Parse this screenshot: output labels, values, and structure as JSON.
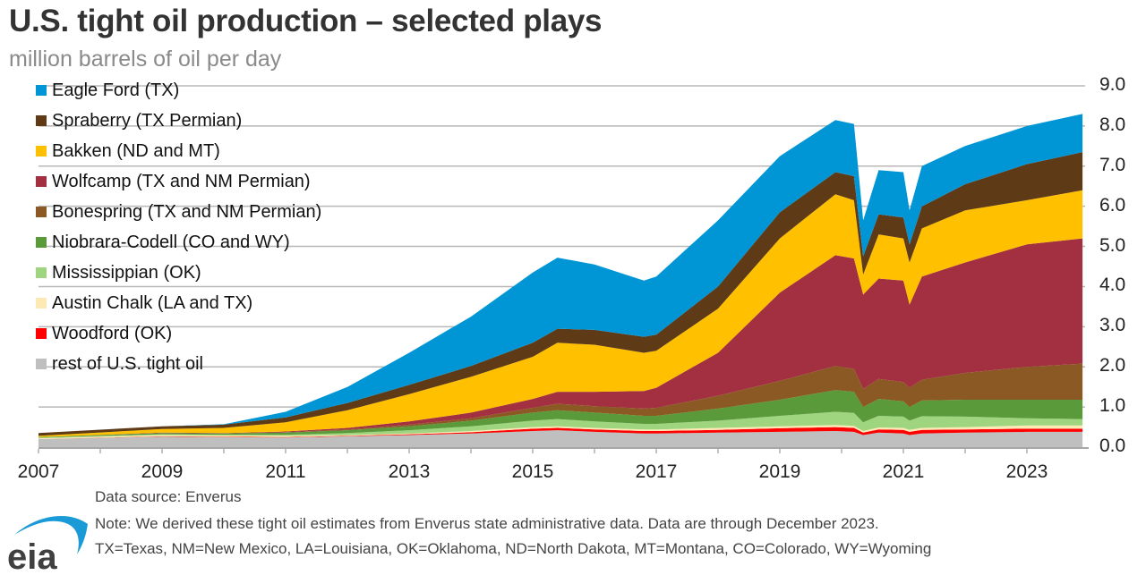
{
  "chart_data": {
    "type": "area",
    "stacked": true,
    "title": "U.S. tight oil production – selected plays",
    "subtitle": "million barrels of oil per day",
    "xlabel": "",
    "ylabel": "million barrels of oil per day",
    "ylim": [
      0,
      9
    ],
    "xlim": [
      2007,
      2024
    ],
    "y_ticks": [
      "0.0",
      "1.0",
      "2.0",
      "3.0",
      "4.0",
      "5.0",
      "6.0",
      "7.0",
      "8.0",
      "9.0"
    ],
    "x_ticks": [
      "2007",
      "2009",
      "2011",
      "2013",
      "2015",
      "2017",
      "2019",
      "2021",
      "2023"
    ],
    "grid": true,
    "legend_position": "top-left",
    "y_axis_side": "right",
    "x": [
      2007.0,
      2009.0,
      2010.0,
      2011.0,
      2012.0,
      2013.0,
      2014.0,
      2015.0,
      2015.4,
      2016.0,
      2016.8,
      2017.0,
      2018.0,
      2019.0,
      2019.9,
      2020.2,
      2020.35,
      2020.6,
      2021.0,
      2021.1,
      2021.3,
      2022.0,
      2023.0,
      2023.9
    ],
    "series": [
      {
        "name": "rest of U.S. tight oil",
        "color": "#bfbfbf",
        "values": [
          0.2,
          0.26,
          0.25,
          0.24,
          0.27,
          0.3,
          0.34,
          0.4,
          0.42,
          0.38,
          0.34,
          0.34,
          0.36,
          0.38,
          0.4,
          0.38,
          0.3,
          0.36,
          0.34,
          0.3,
          0.34,
          0.36,
          0.38,
          0.38
        ]
      },
      {
        "name": "Woodford (OK)",
        "color": "#ff0000",
        "values": [
          0.0,
          0.01,
          0.01,
          0.01,
          0.01,
          0.02,
          0.03,
          0.06,
          0.06,
          0.06,
          0.06,
          0.06,
          0.07,
          0.09,
          0.1,
          0.1,
          0.06,
          0.08,
          0.09,
          0.08,
          0.09,
          0.08,
          0.08,
          0.08
        ]
      },
      {
        "name": "Austin Chalk (LA and TX)",
        "color": "#fde9b4",
        "values": [
          0.02,
          0.03,
          0.03,
          0.03,
          0.02,
          0.02,
          0.03,
          0.04,
          0.04,
          0.04,
          0.04,
          0.04,
          0.05,
          0.05,
          0.05,
          0.05,
          0.04,
          0.05,
          0.05,
          0.05,
          0.05,
          0.06,
          0.08,
          0.08
        ]
      },
      {
        "name": "Mississippian (OK)",
        "color": "#9fd57f",
        "values": [
          0.02,
          0.02,
          0.02,
          0.03,
          0.05,
          0.08,
          0.12,
          0.16,
          0.18,
          0.16,
          0.14,
          0.14,
          0.18,
          0.26,
          0.33,
          0.32,
          0.22,
          0.29,
          0.28,
          0.23,
          0.29,
          0.26,
          0.18,
          0.16
        ]
      },
      {
        "name": "Niobrara-Codell (CO and WY)",
        "color": "#5a9a3a",
        "values": [
          0.01,
          0.03,
          0.03,
          0.05,
          0.07,
          0.1,
          0.14,
          0.2,
          0.22,
          0.22,
          0.2,
          0.2,
          0.3,
          0.4,
          0.54,
          0.53,
          0.38,
          0.42,
          0.38,
          0.34,
          0.39,
          0.42,
          0.46,
          0.48
        ]
      },
      {
        "name": "Bonespring (TX and NM Permian)",
        "color": "#8b5a24",
        "values": [
          0.0,
          0.0,
          0.0,
          0.01,
          0.02,
          0.04,
          0.06,
          0.12,
          0.16,
          0.16,
          0.18,
          0.2,
          0.32,
          0.47,
          0.6,
          0.57,
          0.45,
          0.5,
          0.48,
          0.48,
          0.52,
          0.67,
          0.82,
          0.9
        ]
      },
      {
        "name": "Wolfcamp (TX and NM Permian)",
        "color": "#a33040",
        "values": [
          0.0,
          0.01,
          0.01,
          0.02,
          0.04,
          0.08,
          0.14,
          0.22,
          0.3,
          0.36,
          0.44,
          0.5,
          1.07,
          2.2,
          2.76,
          2.75,
          2.35,
          2.5,
          2.53,
          2.07,
          2.57,
          2.75,
          3.05,
          3.12
        ]
      },
      {
        "name": "Bakken (ND and MT)",
        "color": "#ffc000",
        "values": [
          0.03,
          0.09,
          0.13,
          0.23,
          0.44,
          0.68,
          0.89,
          1.05,
          1.22,
          1.17,
          0.95,
          0.92,
          1.1,
          1.35,
          1.52,
          1.45,
          0.5,
          1.1,
          1.05,
          1.05,
          1.2,
          1.3,
          1.1,
          1.2
        ]
      },
      {
        "name": "Spraberry (TX Permian)",
        "color": "#5e3a17",
        "values": [
          0.07,
          0.07,
          0.08,
          0.12,
          0.18,
          0.23,
          0.27,
          0.35,
          0.35,
          0.37,
          0.4,
          0.4,
          0.55,
          0.65,
          0.55,
          0.6,
          0.45,
          0.5,
          0.52,
          0.45,
          0.55,
          0.65,
          0.9,
          0.95
        ]
      },
      {
        "name": "Eagle Ford (TX)",
        "color": "#0096d6",
        "values": [
          0.0,
          0.0,
          0.01,
          0.14,
          0.4,
          0.8,
          1.23,
          1.75,
          1.77,
          1.63,
          1.4,
          1.45,
          1.65,
          1.4,
          1.3,
          1.3,
          0.9,
          1.1,
          1.13,
          0.85,
          1.0,
          0.95,
          0.95,
          0.95
        ]
      }
    ]
  },
  "legend": [
    {
      "label": "Eagle Ford (TX)",
      "color": "#0096d6"
    },
    {
      "label": "Spraberry (TX Permian)",
      "color": "#5e3a17"
    },
    {
      "label": "Bakken (ND and MT)",
      "color": "#ffc000"
    },
    {
      "label": "Wolfcamp (TX and NM Permian)",
      "color": "#a33040"
    },
    {
      "label": "Bonespring (TX and NM Permian)",
      "color": "#8b5a24"
    },
    {
      "label": "Niobrara-Codell (CO and WY)",
      "color": "#5a9a3a"
    },
    {
      "label": "Mississippian (OK)",
      "color": "#9fd57f"
    },
    {
      "label": "Austin Chalk (LA and TX)",
      "color": "#fde9b4"
    },
    {
      "label": "Woodford (OK)",
      "color": "#ff0000"
    },
    {
      "label": "rest of U.S. tight oil",
      "color": "#bfbfbf"
    }
  ],
  "footer": {
    "source": "Data source: Enverus",
    "note": "Note: We derived these tight oil estimates from Enverus state administrative data. Data are through December 2023.",
    "abbreviations": "TX=Texas, NM=New Mexico, LA=Louisiana, OK=Oklahoma, ND=North Dakota, MT=Montana, CO=Colorado, WY=Wyoming",
    "logo_text": "eia",
    "logo_color": "#1a9ad6"
  }
}
